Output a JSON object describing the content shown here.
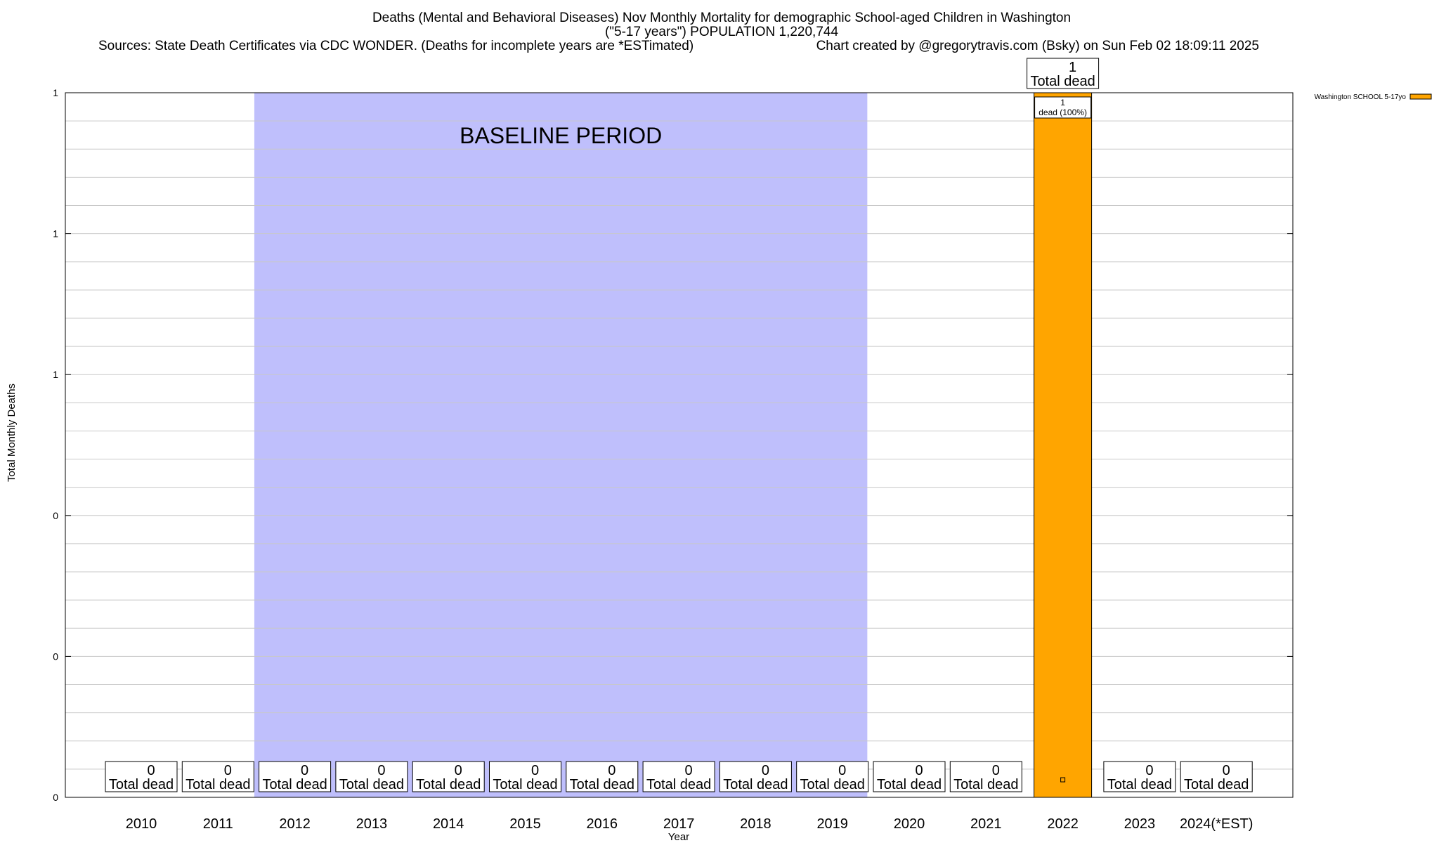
{
  "colors": {
    "bar": "#ffa500",
    "baseline_band": "#bfbffc",
    "grid": "#c8c8c8",
    "frame": "#000000"
  },
  "title_lines": [
    "Deaths (Mental and Behavioral Diseases) Nov Monthly Mortality for demographic School-aged Children in Washington",
    "(\"5-17 years\") POPULATION 1,220,744"
  ],
  "sources_text": "Sources: State Death Certificates via CDC WONDER. (Deaths for incomplete years are *ESTimated)",
  "credit_text": "Chart created by @gregorytravis.com (Bsky) on Sun Feb 02 18:09:11 2025",
  "chart_data": {
    "type": "bar",
    "xlabel": "Year",
    "ylabel": "Total Monthly Deaths",
    "categories": [
      "2010",
      "2011",
      "2012",
      "2013",
      "2014",
      "2015",
      "2016",
      "2017",
      "2018",
      "2019",
      "2020",
      "2021",
      "2022",
      "2023",
      "2024(*EST)"
    ],
    "series": [
      {
        "name": "Washington SCHOOL 5-17yo",
        "values": [
          0,
          0,
          0,
          0,
          0,
          0,
          0,
          0,
          0,
          0,
          0,
          0,
          1,
          0,
          0
        ]
      }
    ],
    "ylim": [
      0,
      1
    ],
    "yticks": [
      0,
      0.2,
      0.4,
      0.6,
      0.8,
      1
    ],
    "ytick_labels": [
      "0",
      "0",
      "0",
      "1",
      "1",
      "1"
    ],
    "grid": true,
    "legend_position": "top-right",
    "total_label_value": [
      "0",
      "0",
      "0",
      "0",
      "0",
      "0",
      "0",
      "0",
      "0",
      "0",
      "0",
      "0",
      "1",
      "0",
      "0"
    ],
    "total_label_text": "Total dead",
    "bar_inner_label_value": "1",
    "bar_inner_label_text": "dead (100%)",
    "baseline": {
      "start_category": "2012",
      "end_category": "2019",
      "label": "BASELINE PERIOD"
    }
  }
}
